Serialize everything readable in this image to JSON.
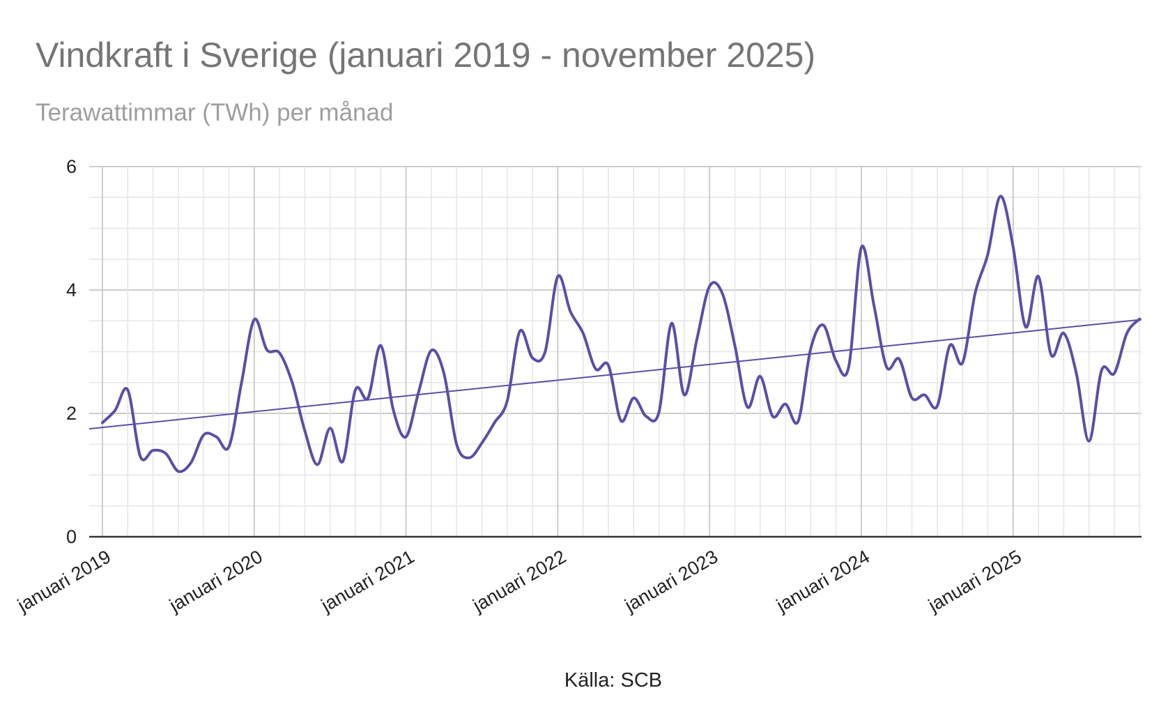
{
  "chart_data": {
    "type": "line",
    "title": "Vindkraft i Sverige (januari 2019 - november 2025)",
    "subtitle": "Terawattimmar (TWh) per månad",
    "xlabel": "Källa: SCB",
    "ylabel": "",
    "ylim": [
      0,
      6
    ],
    "yticks": [
      0,
      2,
      4,
      6
    ],
    "xtick_labels": [
      "januari 2019",
      "januari 2020",
      "januari 2021",
      "januari 2022",
      "januari 2023",
      "januari 2024",
      "januari 2025"
    ],
    "start": "2019-01",
    "end": "2025-11",
    "grid": true,
    "legend": "none",
    "colors": {
      "series": "#5b4ea6",
      "trend": "#5b4ea6",
      "major_grid": "#cccccc",
      "minor_grid": "#e6e6e6",
      "axis": "#333333"
    },
    "series": [
      {
        "values": [
          1.85,
          2.05,
          2.38,
          1.3,
          1.4,
          1.35,
          1.06,
          1.2,
          1.65,
          1.62,
          1.46,
          2.5,
          3.52,
          3.03,
          2.98,
          2.5,
          1.72,
          1.17,
          1.76,
          1.22,
          2.38,
          2.25,
          3.1,
          2.05,
          1.62,
          2.35,
          3.02,
          2.65,
          1.5,
          1.28,
          1.52,
          1.85,
          2.2,
          3.33,
          2.9,
          3.0,
          4.22,
          3.65,
          3.3,
          2.72,
          2.78,
          1.88,
          2.25,
          1.95,
          2.02,
          3.46,
          2.3,
          3.2,
          4.06,
          3.95,
          3.1,
          2.1,
          2.6,
          1.95,
          2.15,
          1.87,
          3.05,
          3.43,
          2.85,
          2.75,
          4.69,
          3.75,
          2.75,
          2.88,
          2.25,
          2.3,
          2.12,
          3.1,
          2.82,
          3.95,
          4.58,
          5.52,
          4.7,
          3.4,
          4.22,
          2.95,
          3.3,
          2.65,
          1.55,
          2.7,
          2.65,
          3.3,
          3.53
        ]
      }
    ],
    "trendline": {
      "start": 1.75,
      "end": 3.52
    }
  }
}
